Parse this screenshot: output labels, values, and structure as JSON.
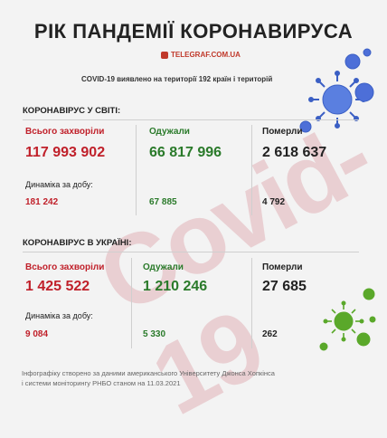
{
  "header": {
    "title": "РІК ПАНДЕМІЇ КОРОНАВИРУСА",
    "brand": "TELEGRAF.COM.UA",
    "subtitle": "COVID-19 виявлено на території 192 країн і територій"
  },
  "background_text": "Covid-19",
  "world": {
    "heading": "КОРОНАВІРУС У СВІТІ:",
    "total_label": "Всього захворіли",
    "total_value": "117 993 902",
    "recovered_label": "Одужали",
    "recovered_value": "66 817 996",
    "died_label": "Померли",
    "died_value": "2 618 637",
    "dynamics_label": "Динаміка за добу:",
    "dyn_total": "181 242",
    "dyn_recovered": "67 885",
    "dyn_died": "4 792"
  },
  "ukraine": {
    "heading": "КОРОНАВІРУС В УКРАЇНІ:",
    "total_label": "Всього захворіли",
    "total_value": "1 425 522",
    "recovered_label": "Одужали",
    "recovered_value": "1 210 246",
    "died_label": "Померли",
    "died_value": "27 685",
    "dynamics_label": "Динаміка за добу:",
    "dyn_total": "9 084",
    "dyn_recovered": "5 330",
    "dyn_died": "262"
  },
  "footer": {
    "line1": "Інфографіку створено за даними американського Університету Джонса Хопкінса",
    "line2": "і системи моніторингу РНБО станом на 11.03.2021"
  },
  "colors": {
    "red": "#c0202a",
    "green": "#2a7a2a",
    "background": "#f3f3f3",
    "virus_blue": "#3b5fc4",
    "virus_green": "#5aa82a"
  }
}
